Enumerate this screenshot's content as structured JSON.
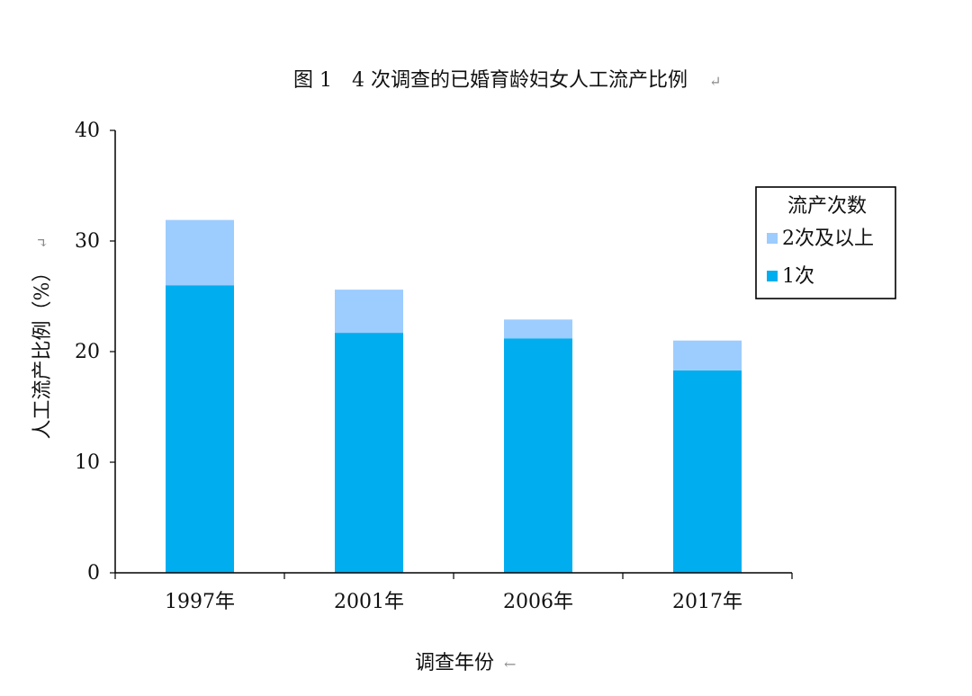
{
  "chart_data": {
    "type": "bar",
    "stacked": true,
    "title": "图 1　4 次调查的已婚育龄妇女人工流产比例",
    "title_mark": "↵",
    "xlabel": "调查年份",
    "xlabel_mark": "←",
    "ylabel": "人工流产比例（%）",
    "ylabel_mark": "↵",
    "categories": [
      "1997年",
      "2001年",
      "2006年",
      "2017年"
    ],
    "ylim": [
      0,
      40
    ],
    "yticks": [
      0,
      10,
      20,
      30,
      40
    ],
    "grid": false,
    "legend": {
      "title": "流产次数",
      "position": "right"
    },
    "series": [
      {
        "name": "1次",
        "values": [
          26.0,
          21.7,
          21.2,
          18.3
        ],
        "color": "#00AEEF"
      },
      {
        "name": "2次及以上",
        "values": [
          5.9,
          3.9,
          1.7,
          2.7
        ],
        "color": "#9DCCFF"
      }
    ],
    "axis_color": "#000000"
  }
}
